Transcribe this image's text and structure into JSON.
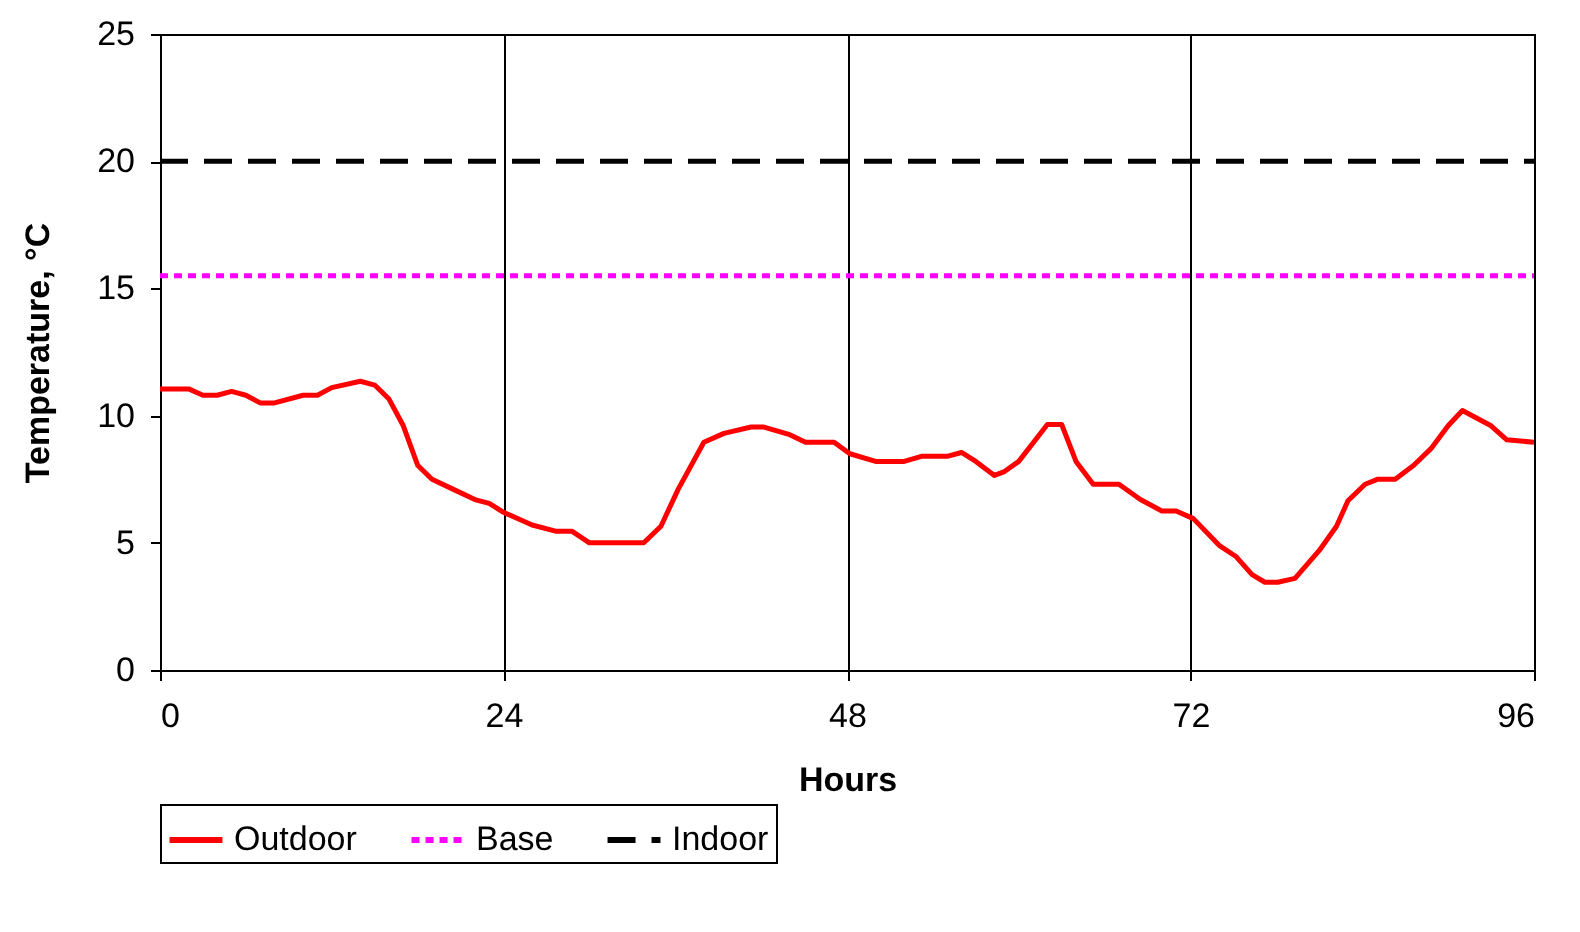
{
  "chart_data": {
    "type": "line",
    "xlabel": "Hours",
    "ylabel": "Temperature, °C",
    "xlim": [
      0,
      96
    ],
    "xticks": [
      0,
      24,
      48,
      72,
      96
    ],
    "ylim": [
      0,
      25
    ],
    "yticks": [
      0,
      5,
      10,
      15,
      20,
      25
    ],
    "grid": "x",
    "legend": "bottom",
    "marker": "none",
    "series": [
      {
        "name": "Outdoor",
        "color": "#ff0000",
        "line_style": "solid",
        "x": [
          0,
          2,
          3,
          4,
          5,
          6,
          7,
          8,
          10,
          11,
          12,
          14,
          15,
          16,
          17,
          18,
          19,
          20.5,
          22,
          23,
          24,
          26,
          27.7,
          28.8,
          30,
          33.8,
          35,
          36.2,
          38,
          39.4,
          41.3,
          42.2,
          44,
          45.1,
          47.1,
          48.2,
          50,
          52,
          53.2,
          55,
          56,
          57,
          58.3,
          59,
          60,
          62,
          63,
          64,
          65.2,
          67,
          68.5,
          70,
          71,
          72.2,
          74,
          75.2,
          76.3,
          77.2,
          78.1,
          79.3,
          81,
          82.2,
          83,
          84.2,
          85.1,
          86.3,
          87.6,
          88.8,
          90,
          91,
          93,
          94.1,
          96
        ],
        "values": [
          11.05,
          11.05,
          10.8,
          10.8,
          10.95,
          10.8,
          10.5,
          10.5,
          10.8,
          10.8,
          11.1,
          11.35,
          11.2,
          10.65,
          9.6,
          8.05,
          7.5,
          7.1,
          6.7,
          6.55,
          6.2,
          5.7,
          5.45,
          5.45,
          5.0,
          5.0,
          5.65,
          7.1,
          8.95,
          9.3,
          9.55,
          9.55,
          9.25,
          8.95,
          8.95,
          8.5,
          8.2,
          8.2,
          8.4,
          8.4,
          8.55,
          8.2,
          7.65,
          7.8,
          8.2,
          9.65,
          9.65,
          8.2,
          7.3,
          7.3,
          6.7,
          6.25,
          6.25,
          5.95,
          4.9,
          4.45,
          3.75,
          3.45,
          3.45,
          3.6,
          4.7,
          5.65,
          6.65,
          7.3,
          7.5,
          7.5,
          8.05,
          8.7,
          9.6,
          10.2,
          9.6,
          9.05,
          8.95
        ]
      },
      {
        "name": "Base",
        "color": "#ff00ff",
        "line_style": "dotted",
        "x": [
          0,
          96
        ],
        "values": [
          15.5,
          15.5
        ]
      },
      {
        "name": "Indoor",
        "color": "#000000",
        "line_style": "dashed",
        "x": [
          0,
          96
        ],
        "values": [
          20,
          20
        ]
      }
    ]
  }
}
